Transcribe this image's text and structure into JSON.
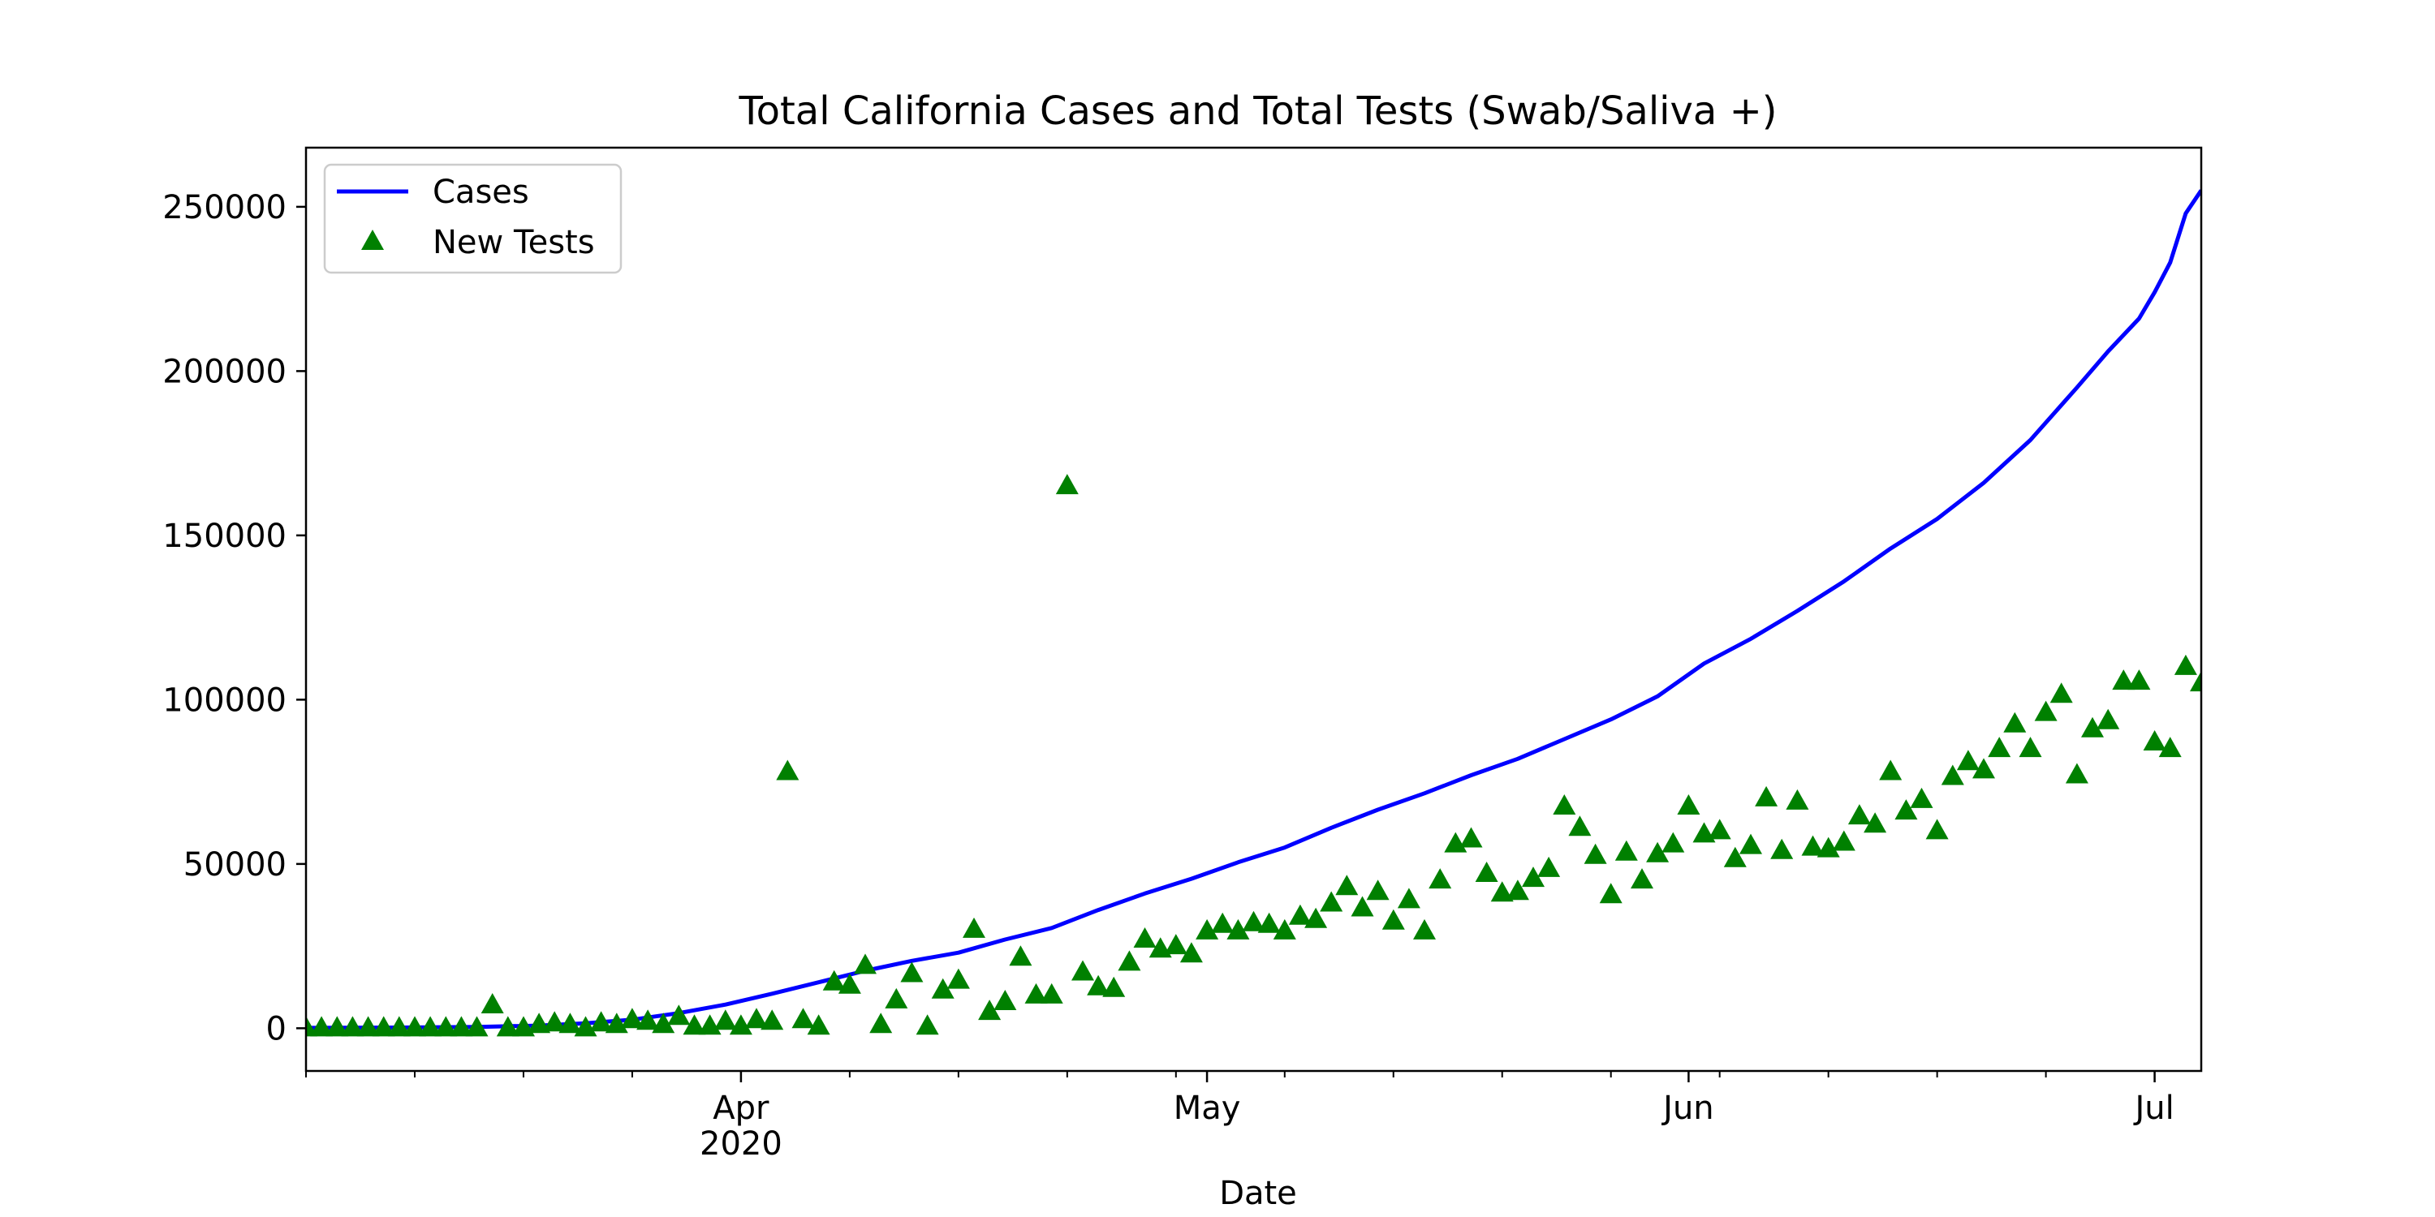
{
  "chart_data": {
    "type": "line",
    "title": "Total California Cases and Total Tests (Swab/Saliva +)",
    "xlabel": "Date",
    "ylabel": "",
    "x_start_date": "2020-03-04",
    "x_end_date": "2020-07-04",
    "ylim": [
      -13000,
      268000
    ],
    "yticks": [
      0,
      50000,
      100000,
      150000,
      200000,
      250000
    ],
    "xticks_major": [
      {
        "date": "2020-04-01",
        "label": "Apr",
        "sublabel": "2020"
      },
      {
        "date": "2020-05-01",
        "label": "May",
        "sublabel": ""
      },
      {
        "date": "2020-06-01",
        "label": "Jun",
        "sublabel": ""
      },
      {
        "date": "2020-07-01",
        "label": "Jul",
        "sublabel": ""
      }
    ],
    "xticks_minor": [
      "2020-03-04",
      "2020-03-11",
      "2020-03-18",
      "2020-03-25",
      "2020-04-08",
      "2020-04-15",
      "2020-04-22",
      "2020-04-29",
      "2020-05-06",
      "2020-05-13",
      "2020-05-20",
      "2020-05-27",
      "2020-06-03",
      "2020-06-10",
      "2020-06-17",
      "2020-06-24"
    ],
    "grid": false,
    "legend_position": "top-left",
    "series": [
      {
        "name": "Cases",
        "type": "line",
        "color": "#0000ff",
        "points": [
          [
            "2020-03-04",
            100
          ],
          [
            "2020-03-10",
            200
          ],
          [
            "2020-03-15",
            400
          ],
          [
            "2020-03-19",
            800
          ],
          [
            "2020-03-22",
            1500
          ],
          [
            "2020-03-25",
            2600
          ],
          [
            "2020-03-28",
            4600
          ],
          [
            "2020-03-31",
            7200
          ],
          [
            "2020-04-03",
            10500
          ],
          [
            "2020-04-06",
            14000
          ],
          [
            "2020-04-09",
            17500
          ],
          [
            "2020-04-12",
            20500
          ],
          [
            "2020-04-15",
            23000
          ],
          [
            "2020-04-18",
            27000
          ],
          [
            "2020-04-21",
            30500
          ],
          [
            "2020-04-24",
            36000
          ],
          [
            "2020-04-27",
            41000
          ],
          [
            "2020-04-30",
            45500
          ],
          [
            "2020-05-03",
            50500
          ],
          [
            "2020-05-06",
            55000
          ],
          [
            "2020-05-09",
            61000
          ],
          [
            "2020-05-12",
            66500
          ],
          [
            "2020-05-15",
            71500
          ],
          [
            "2020-05-18",
            77000
          ],
          [
            "2020-05-21",
            82000
          ],
          [
            "2020-05-24",
            88000
          ],
          [
            "2020-05-27",
            94000
          ],
          [
            "2020-05-30",
            101000
          ],
          [
            "2020-06-02",
            111000
          ],
          [
            "2020-06-05",
            118500
          ],
          [
            "2020-06-08",
            127000
          ],
          [
            "2020-06-11",
            136000
          ],
          [
            "2020-06-14",
            146000
          ],
          [
            "2020-06-17",
            155000
          ],
          [
            "2020-06-20",
            166000
          ],
          [
            "2020-06-23",
            179000
          ],
          [
            "2020-06-26",
            195000
          ],
          [
            "2020-06-28",
            206000
          ],
          [
            "2020-06-30",
            216000
          ],
          [
            "2020-07-01",
            224000
          ],
          [
            "2020-07-02",
            233000
          ],
          [
            "2020-07-03",
            248000
          ],
          [
            "2020-07-04",
            255000
          ]
        ]
      },
      {
        "name": "New Tests",
        "type": "scatter",
        "marker": "triangle",
        "color": "#008000",
        "points": [
          [
            "2020-03-04",
            0
          ],
          [
            "2020-03-05",
            0
          ],
          [
            "2020-03-06",
            0
          ],
          [
            "2020-03-07",
            0
          ],
          [
            "2020-03-08",
            0
          ],
          [
            "2020-03-09",
            0
          ],
          [
            "2020-03-10",
            0
          ],
          [
            "2020-03-11",
            0
          ],
          [
            "2020-03-12",
            0
          ],
          [
            "2020-03-13",
            0
          ],
          [
            "2020-03-14",
            0
          ],
          [
            "2020-03-15",
            0
          ],
          [
            "2020-03-16",
            7000
          ],
          [
            "2020-03-17",
            0
          ],
          [
            "2020-03-18",
            0
          ],
          [
            "2020-03-19",
            1000
          ],
          [
            "2020-03-20",
            1500
          ],
          [
            "2020-03-21",
            1000
          ],
          [
            "2020-03-22",
            0
          ],
          [
            "2020-03-23",
            1500
          ],
          [
            "2020-03-24",
            1000
          ],
          [
            "2020-03-25",
            2500
          ],
          [
            "2020-03-26",
            2000
          ],
          [
            "2020-03-27",
            1000
          ],
          [
            "2020-03-28",
            3500
          ],
          [
            "2020-03-29",
            500
          ],
          [
            "2020-03-30",
            500
          ],
          [
            "2020-03-31",
            2000
          ],
          [
            "2020-04-01",
            500
          ],
          [
            "2020-04-02",
            2500
          ],
          [
            "2020-04-03",
            2000
          ],
          [
            "2020-04-04",
            78000
          ],
          [
            "2020-04-05",
            2500
          ],
          [
            "2020-04-06",
            500
          ],
          [
            "2020-04-07",
            14000
          ],
          [
            "2020-04-08",
            13000
          ],
          [
            "2020-04-09",
            19000
          ],
          [
            "2020-04-10",
            1000
          ],
          [
            "2020-04-11",
            8500
          ],
          [
            "2020-04-12",
            16500
          ],
          [
            "2020-04-13",
            500
          ],
          [
            "2020-04-14",
            11500
          ],
          [
            "2020-04-15",
            14500
          ],
          [
            "2020-04-16",
            30000
          ],
          [
            "2020-04-17",
            5000
          ],
          [
            "2020-04-18",
            8000
          ],
          [
            "2020-04-19",
            21500
          ],
          [
            "2020-04-20",
            10000
          ],
          [
            "2020-04-21",
            10000
          ],
          [
            "2020-04-22",
            165000
          ],
          [
            "2020-04-23",
            17000
          ],
          [
            "2020-04-24",
            12500
          ],
          [
            "2020-04-25",
            12000
          ],
          [
            "2020-04-26",
            20000
          ],
          [
            "2020-04-27",
            27000
          ],
          [
            "2020-04-28",
            24000
          ],
          [
            "2020-04-29",
            25000
          ],
          [
            "2020-04-30",
            22500
          ],
          [
            "2020-05-01",
            29500
          ],
          [
            "2020-05-02",
            31500
          ],
          [
            "2020-05-03",
            29500
          ],
          [
            "2020-05-04",
            32000
          ],
          [
            "2020-05-05",
            31500
          ],
          [
            "2020-05-06",
            29500
          ],
          [
            "2020-05-07",
            34000
          ],
          [
            "2020-05-08",
            33000
          ],
          [
            "2020-05-09",
            38000
          ],
          [
            "2020-05-10",
            43000
          ],
          [
            "2020-05-11",
            36500
          ],
          [
            "2020-05-12",
            41500
          ],
          [
            "2020-05-13",
            32500
          ],
          [
            "2020-05-14",
            39000
          ],
          [
            "2020-05-15",
            29500
          ],
          [
            "2020-05-16",
            45000
          ],
          [
            "2020-05-17",
            56000
          ],
          [
            "2020-05-18",
            57500
          ],
          [
            "2020-05-19",
            47000
          ],
          [
            "2020-05-20",
            41000
          ],
          [
            "2020-05-21",
            41500
          ],
          [
            "2020-05-22",
            45500
          ],
          [
            "2020-05-23",
            48500
          ],
          [
            "2020-05-24",
            67500
          ],
          [
            "2020-05-25",
            61000
          ],
          [
            "2020-05-26",
            52500
          ],
          [
            "2020-05-27",
            40500
          ],
          [
            "2020-05-28",
            53500
          ],
          [
            "2020-05-29",
            45000
          ],
          [
            "2020-05-30",
            53000
          ],
          [
            "2020-05-31",
            56000
          ],
          [
            "2020-06-01",
            67500
          ],
          [
            "2020-06-02",
            59000
          ],
          [
            "2020-06-03",
            60000
          ],
          [
            "2020-06-04",
            51500
          ],
          [
            "2020-06-05",
            55500
          ],
          [
            "2020-06-06",
            70000
          ],
          [
            "2020-06-07",
            54000
          ],
          [
            "2020-06-08",
            69000
          ],
          [
            "2020-06-09",
            55000
          ],
          [
            "2020-06-10",
            54500
          ],
          [
            "2020-06-11",
            56500
          ],
          [
            "2020-06-12",
            64500
          ],
          [
            "2020-06-13",
            62000
          ],
          [
            "2020-06-14",
            78000
          ],
          [
            "2020-06-15",
            66000
          ],
          [
            "2020-06-16",
            69500
          ],
          [
            "2020-06-17",
            60000
          ],
          [
            "2020-06-18",
            76500
          ],
          [
            "2020-06-19",
            81000
          ],
          [
            "2020-06-20",
            78500
          ],
          [
            "2020-06-21",
            85000
          ],
          [
            "2020-06-22",
            92500
          ],
          [
            "2020-06-23",
            85000
          ],
          [
            "2020-06-24",
            96000
          ],
          [
            "2020-06-25",
            101500
          ],
          [
            "2020-06-26",
            77000
          ],
          [
            "2020-06-27",
            91000
          ],
          [
            "2020-06-28",
            93500
          ],
          [
            "2020-06-29",
            105500
          ],
          [
            "2020-06-30",
            105500
          ],
          [
            "2020-07-01",
            87000
          ],
          [
            "2020-07-02",
            85000
          ],
          [
            "2020-07-03",
            110000
          ],
          [
            "2020-07-04",
            105000
          ]
        ]
      }
    ]
  }
}
